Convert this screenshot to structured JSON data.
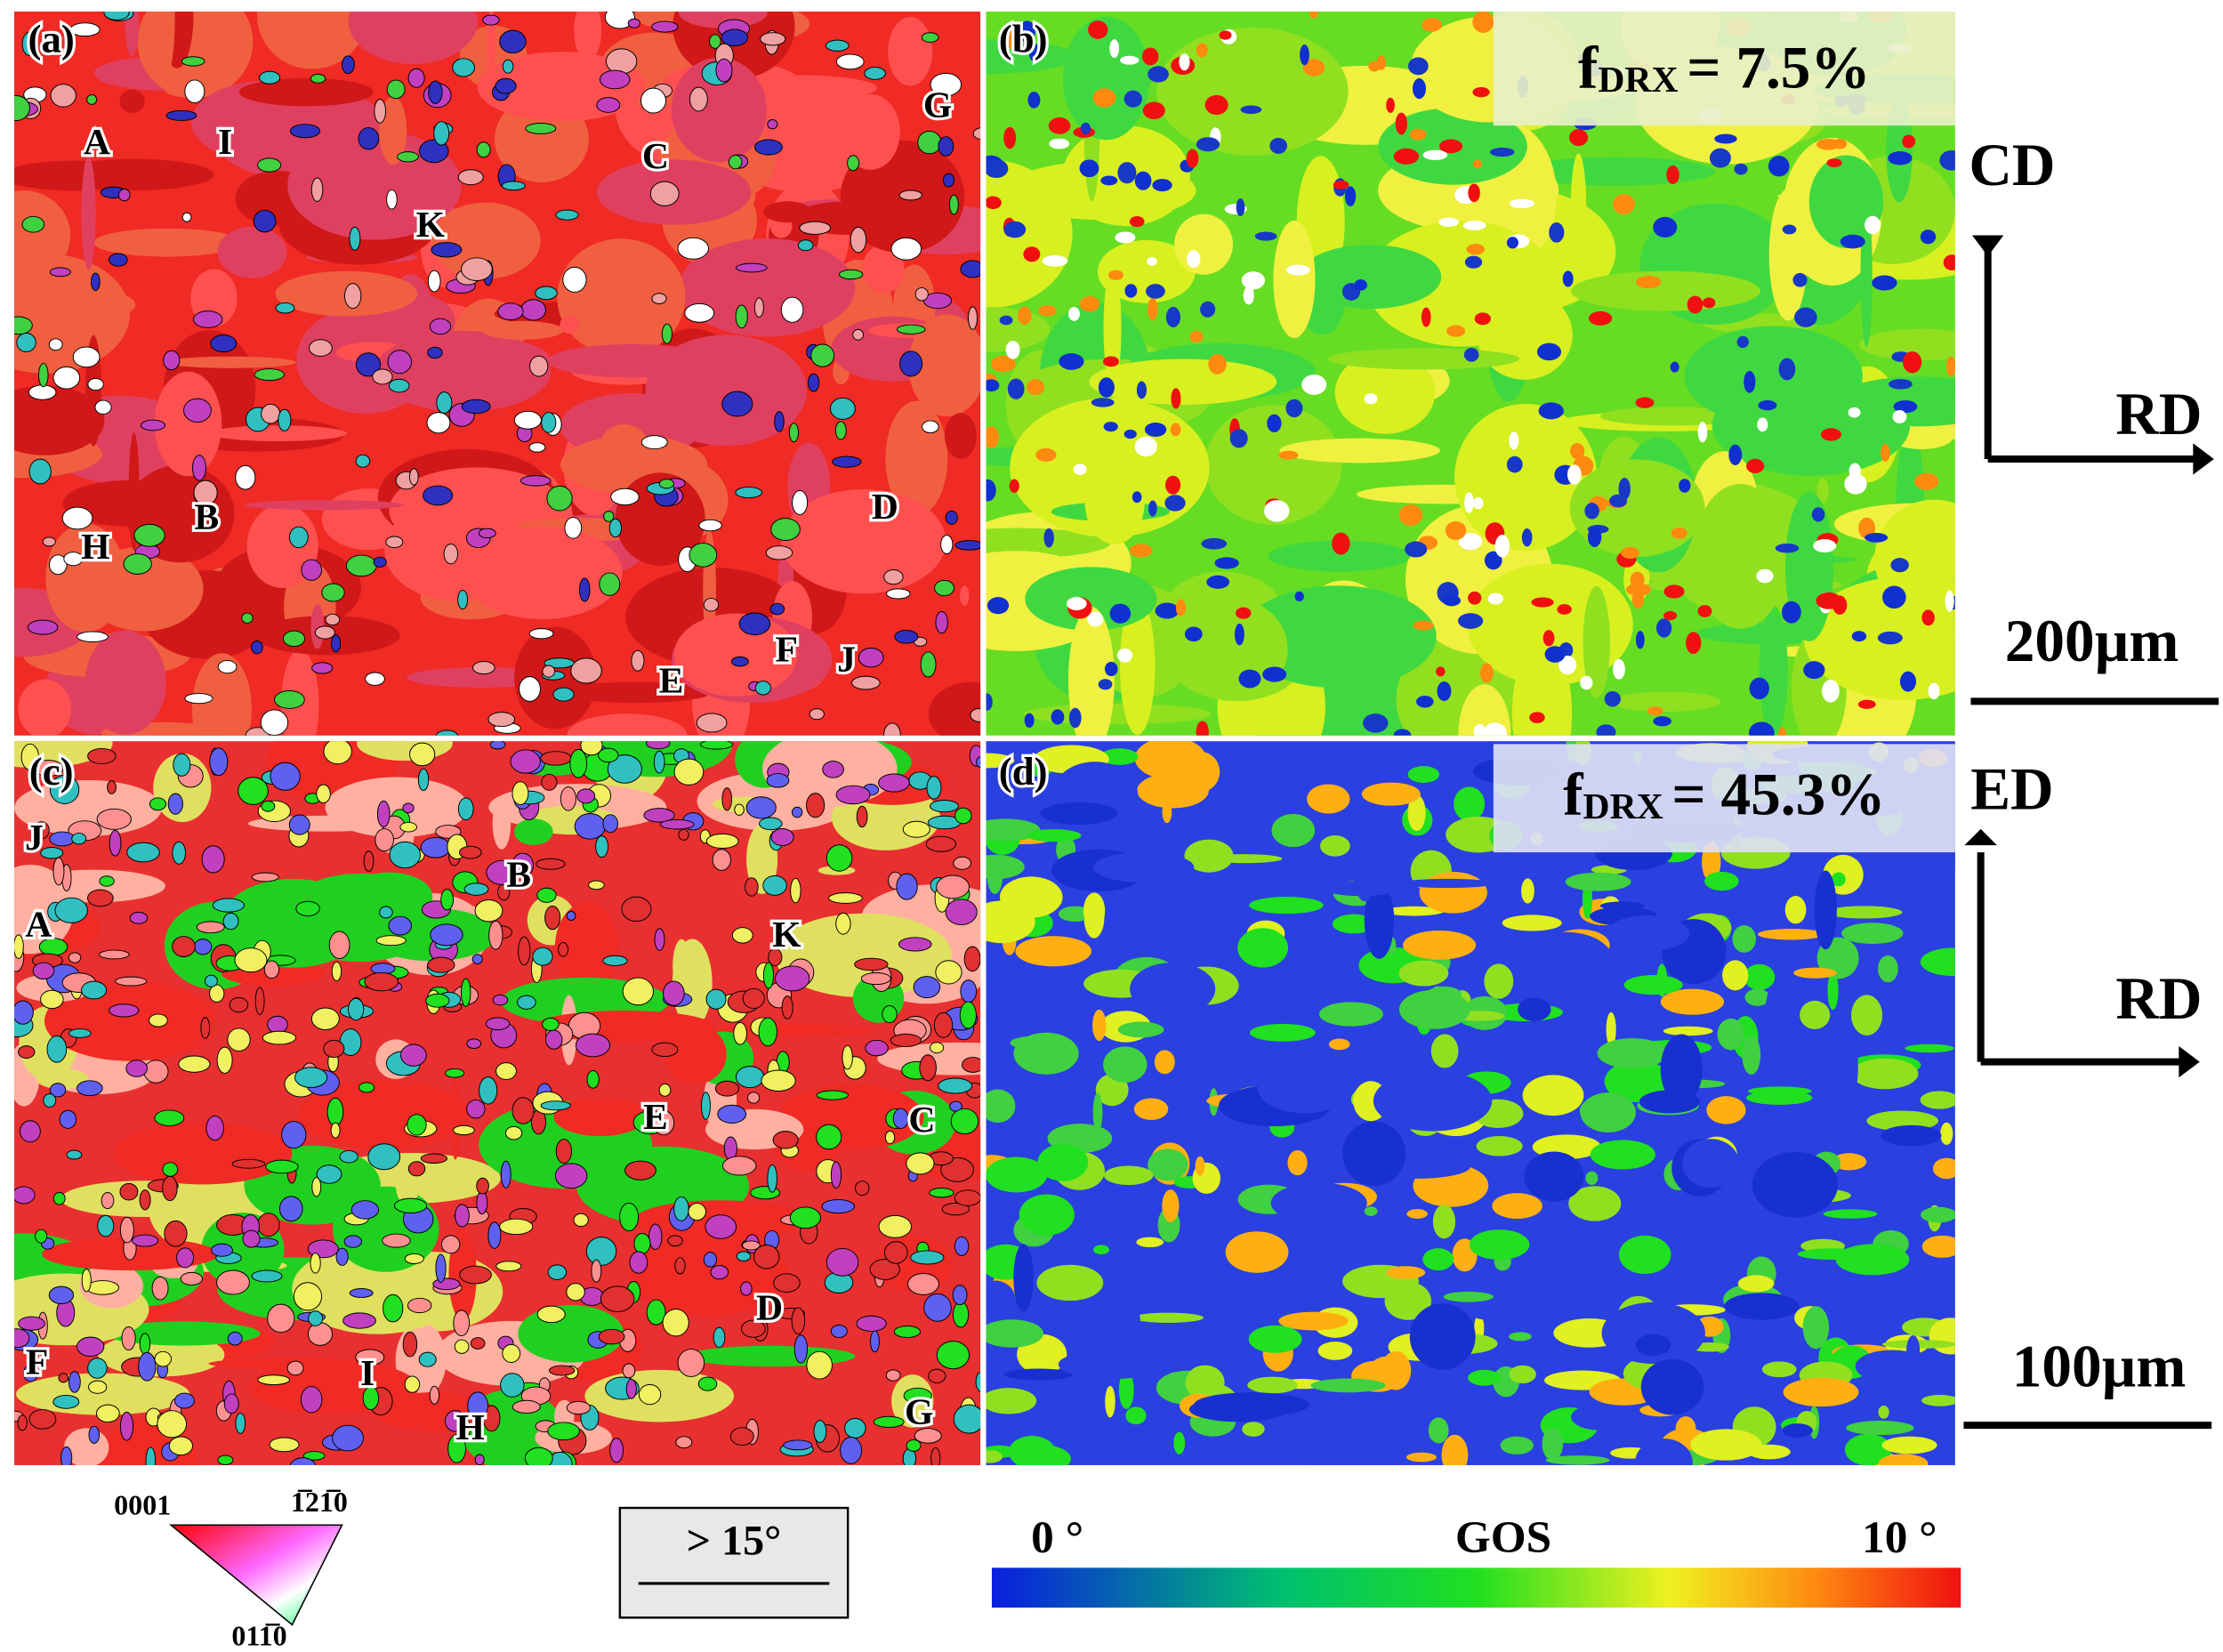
{
  "panels": [
    {
      "label": "(a)",
      "points": [
        {
          "label": "A"
        },
        {
          "label": "I"
        },
        {
          "label": "C"
        },
        {
          "label": "G"
        },
        {
          "label": "K"
        },
        {
          "label": "B"
        },
        {
          "label": "H"
        },
        {
          "label": "D"
        },
        {
          "label": "E"
        },
        {
          "label": "F"
        },
        {
          "label": "J"
        }
      ]
    },
    {
      "label": "(b)",
      "fdrx": {
        "symbol": "f",
        "subscript": "DRX",
        "text": "= 7.5%"
      }
    },
    {
      "label": "(c)",
      "points": [
        {
          "label": "J"
        },
        {
          "label": "B"
        },
        {
          "label": "A"
        },
        {
          "label": "K"
        },
        {
          "label": "E"
        },
        {
          "label": "C"
        },
        {
          "label": "D"
        },
        {
          "label": "F"
        },
        {
          "label": "I"
        },
        {
          "label": "H"
        },
        {
          "label": "G"
        }
      ]
    },
    {
      "label": "(d)",
      "fdrx": {
        "symbol": "f",
        "subscript": "DRX",
        "text": "= 45.3%"
      }
    }
  ],
  "axes": [
    {
      "vertical": "CD",
      "horizontal": "RD",
      "scale_bar": "200µm"
    },
    {
      "vertical": "ED",
      "horizontal": "RD",
      "scale_bar": "100µm"
    }
  ],
  "ipf_legend": {
    "corner_0001": "0001",
    "corner_1210": "1̅21̅0",
    "corner_0110": "011̅0"
  },
  "boundary_legend": "> 15°",
  "gos_legend": {
    "min": "0 °",
    "title": "GOS",
    "max": "10 °"
  }
}
